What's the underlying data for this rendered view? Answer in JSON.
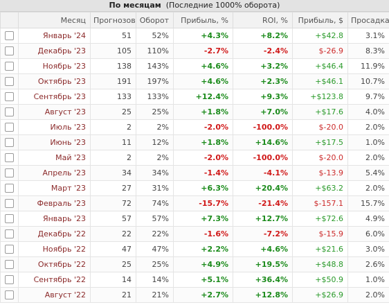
{
  "title": {
    "bold": "По месяцам",
    "sub": "(Последние 1000% оборота)"
  },
  "headers": {
    "month": "Месяц",
    "forecasts": "Прогнозов",
    "turnover": "Оборот",
    "profit_pct": "Прибыль, %",
    "roi": "ROI, %",
    "profit_usd": "Прибыль, $",
    "drawdown": "Просадка"
  },
  "colors": {
    "positive": "#1a8a1a",
    "negative": "#d01818",
    "month": "#8b2a2a"
  },
  "rows": [
    {
      "month": "Январь '24",
      "forecasts": "51",
      "turnover": "52%",
      "profit_pct": "+4.3%",
      "roi": "+8.2%",
      "profit_usd": "+$42.8",
      "drawdown": "3.1%"
    },
    {
      "month": "Декабрь '23",
      "forecasts": "105",
      "turnover": "110%",
      "profit_pct": "-2.7%",
      "roi": "-2.4%",
      "profit_usd": "$-26.9",
      "drawdown": "8.3%"
    },
    {
      "month": "Ноябрь '23",
      "forecasts": "138",
      "turnover": "143%",
      "profit_pct": "+4.6%",
      "roi": "+3.2%",
      "profit_usd": "+$46.4",
      "drawdown": "11.9%"
    },
    {
      "month": "Октябрь '23",
      "forecasts": "191",
      "turnover": "197%",
      "profit_pct": "+4.6%",
      "roi": "+2.3%",
      "profit_usd": "+$46.1",
      "drawdown": "10.7%"
    },
    {
      "month": "Сентябрь '23",
      "forecasts": "133",
      "turnover": "133%",
      "profit_pct": "+12.4%",
      "roi": "+9.3%",
      "profit_usd": "+$123.8",
      "drawdown": "9.7%"
    },
    {
      "month": "Август '23",
      "forecasts": "25",
      "turnover": "25%",
      "profit_pct": "+1.8%",
      "roi": "+7.0%",
      "profit_usd": "+$17.6",
      "drawdown": "4.0%"
    },
    {
      "month": "Июль '23",
      "forecasts": "2",
      "turnover": "2%",
      "profit_pct": "-2.0%",
      "roi": "-100.0%",
      "profit_usd": "$-20.0",
      "drawdown": "2.0%"
    },
    {
      "month": "Июнь '23",
      "forecasts": "11",
      "turnover": "12%",
      "profit_pct": "+1.8%",
      "roi": "+14.6%",
      "profit_usd": "+$17.5",
      "drawdown": "1.0%"
    },
    {
      "month": "Май '23",
      "forecasts": "2",
      "turnover": "2%",
      "profit_pct": "-2.0%",
      "roi": "-100.0%",
      "profit_usd": "$-20.0",
      "drawdown": "2.0%"
    },
    {
      "month": "Апрель '23",
      "forecasts": "34",
      "turnover": "34%",
      "profit_pct": "-1.4%",
      "roi": "-4.1%",
      "profit_usd": "$-13.9",
      "drawdown": "5.4%"
    },
    {
      "month": "Март '23",
      "forecasts": "27",
      "turnover": "31%",
      "profit_pct": "+6.3%",
      "roi": "+20.4%",
      "profit_usd": "+$63.2",
      "drawdown": "2.0%"
    },
    {
      "month": "Февраль '23",
      "forecasts": "72",
      "turnover": "74%",
      "profit_pct": "-15.7%",
      "roi": "-21.4%",
      "profit_usd": "$-157.1",
      "drawdown": "15.7%"
    },
    {
      "month": "Январь '23",
      "forecasts": "57",
      "turnover": "57%",
      "profit_pct": "+7.3%",
      "roi": "+12.7%",
      "profit_usd": "+$72.6",
      "drawdown": "4.9%"
    },
    {
      "month": "Декабрь '22",
      "forecasts": "22",
      "turnover": "22%",
      "profit_pct": "-1.6%",
      "roi": "-7.2%",
      "profit_usd": "$-15.9",
      "drawdown": "6.0%"
    },
    {
      "month": "Ноябрь '22",
      "forecasts": "47",
      "turnover": "47%",
      "profit_pct": "+2.2%",
      "roi": "+4.6%",
      "profit_usd": "+$21.6",
      "drawdown": "3.0%"
    },
    {
      "month": "Октябрь '22",
      "forecasts": "25",
      "turnover": "25%",
      "profit_pct": "+4.9%",
      "roi": "+19.5%",
      "profit_usd": "+$48.8",
      "drawdown": "2.6%"
    },
    {
      "month": "Сентябрь '22",
      "forecasts": "14",
      "turnover": "14%",
      "profit_pct": "+5.1%",
      "roi": "+36.4%",
      "profit_usd": "+$50.9",
      "drawdown": "1.0%"
    },
    {
      "month": "Август '22",
      "forecasts": "21",
      "turnover": "21%",
      "profit_pct": "+2.7%",
      "roi": "+12.8%",
      "profit_usd": "+$26.9",
      "drawdown": "2.0%"
    }
  ]
}
